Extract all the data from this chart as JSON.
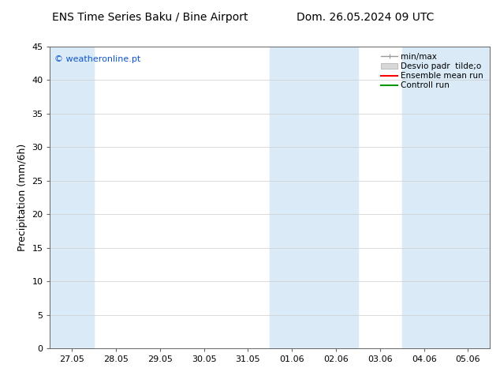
{
  "title_left": "ENS Time Series Baku / Bine Airport",
  "title_right": "Dom. 26.05.2024 09 UTC",
  "ylabel": "Precipitation (mm/6h)",
  "ylim": [
    0,
    45
  ],
  "yticks": [
    0,
    5,
    10,
    15,
    20,
    25,
    30,
    35,
    40,
    45
  ],
  "xlabels": [
    "27.05",
    "28.05",
    "29.05",
    "30.05",
    "31.05",
    "01.06",
    "02.06",
    "03.06",
    "04.06",
    "05.06"
  ],
  "watermark": "© weatheronline.pt",
  "background_color": "#ffffff",
  "plot_bg_color": "#ffffff",
  "shaded_color": "#daeaf7",
  "shaded_bands": [
    0,
    5,
    6,
    8,
    9
  ],
  "legend_items": [
    {
      "label": "min/max",
      "color": "#aaaaaa"
    },
    {
      "label": "Desvio padr  tilde;o",
      "color": "#cccccc"
    },
    {
      "label": "Ensemble mean run",
      "color": "#ff0000"
    },
    {
      "label": "Controll run",
      "color": "#009900"
    }
  ],
  "title_fontsize": 10,
  "ylabel_fontsize": 9,
  "tick_fontsize": 8,
  "legend_fontsize": 7.5
}
